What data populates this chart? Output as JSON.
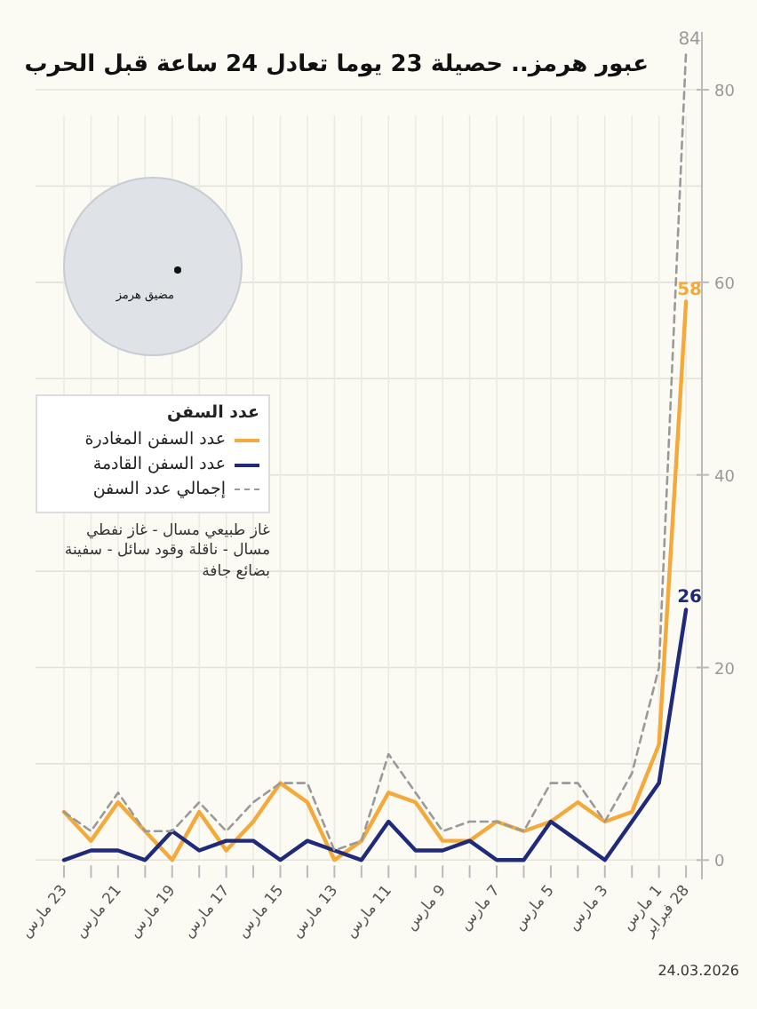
{
  "chart_data": {
    "type": "line",
    "title": "عبور هرمز.. حصيلة 23 يوما تعادل 24 ساعة قبل الحرب",
    "categories": [
      "23 مارس",
      null,
      "21 مارس",
      null,
      "19 مارس",
      null,
      "17 مارس",
      null,
      "15 مارس",
      null,
      "13 مارس",
      null,
      "11 مارس",
      null,
      "9 مارس",
      null,
      "7 مارس",
      null,
      "5 مارس",
      null,
      "3 مارس",
      null,
      "1 مارس",
      "28 فبراير"
    ],
    "series": [
      {
        "name": "عدد السفن المغادرة",
        "color": "#f5a93a",
        "line_style": "solid",
        "values": [
          5,
          2,
          6,
          3,
          0,
          5,
          1,
          4,
          8,
          6,
          0,
          2,
          7,
          6,
          2,
          2,
          4,
          3,
          4,
          6,
          4,
          5,
          12,
          58
        ],
        "value_labels": [
          null,
          null,
          null,
          null,
          null,
          null,
          null,
          null,
          null,
          null,
          null,
          null,
          null,
          null,
          null,
          null,
          null,
          null,
          null,
          null,
          null,
          null,
          null,
          "58"
        ]
      },
      {
        "name": "عدد السفن القادمة",
        "color": "#1f2a7a",
        "line_style": "solid",
        "values": [
          0,
          1,
          1,
          0,
          3,
          1,
          2,
          2,
          0,
          2,
          1,
          0,
          4,
          1,
          1,
          2,
          0,
          0,
          4,
          2,
          0,
          4,
          8,
          26
        ],
        "value_labels": [
          null,
          null,
          null,
          null,
          null,
          null,
          null,
          null,
          null,
          null,
          null,
          null,
          null,
          null,
          null,
          null,
          null,
          null,
          null,
          null,
          null,
          null,
          null,
          "26"
        ]
      },
      {
        "name": "إجمالي عدد السفن",
        "color": "#9a9a9a",
        "line_style": "dashed",
        "values": [
          5,
          3,
          7,
          3,
          3,
          6,
          3,
          6,
          8,
          8,
          1,
          2,
          11,
          7,
          3,
          4,
          4,
          3,
          8,
          8,
          4,
          9,
          20,
          84
        ],
        "value_labels": [
          null,
          null,
          null,
          null,
          null,
          null,
          null,
          null,
          null,
          null,
          null,
          null,
          null,
          null,
          null,
          null,
          null,
          null,
          null,
          null,
          null,
          null,
          null,
          "84"
        ]
      }
    ],
    "ylim": [
      -2,
      86
    ],
    "yticks": [
      0,
      {
        "value": 10,
        "label": null
      },
      20,
      {
        "value": 30,
        "label": null
      },
      40,
      {
        "value": 50,
        "label": null
      },
      60,
      {
        "value": 70,
        "label": null
      },
      80
    ],
    "grid": true,
    "legend": "left",
    "legend_title": "عدد السفن",
    "annotations": [
      "مضيق هرمز",
      "غاز طبيعي مسال - غاز نفطي مسال - ناقلة وقود سائل - سفينة بضائع جافة",
      "24.03.2026"
    ]
  }
}
